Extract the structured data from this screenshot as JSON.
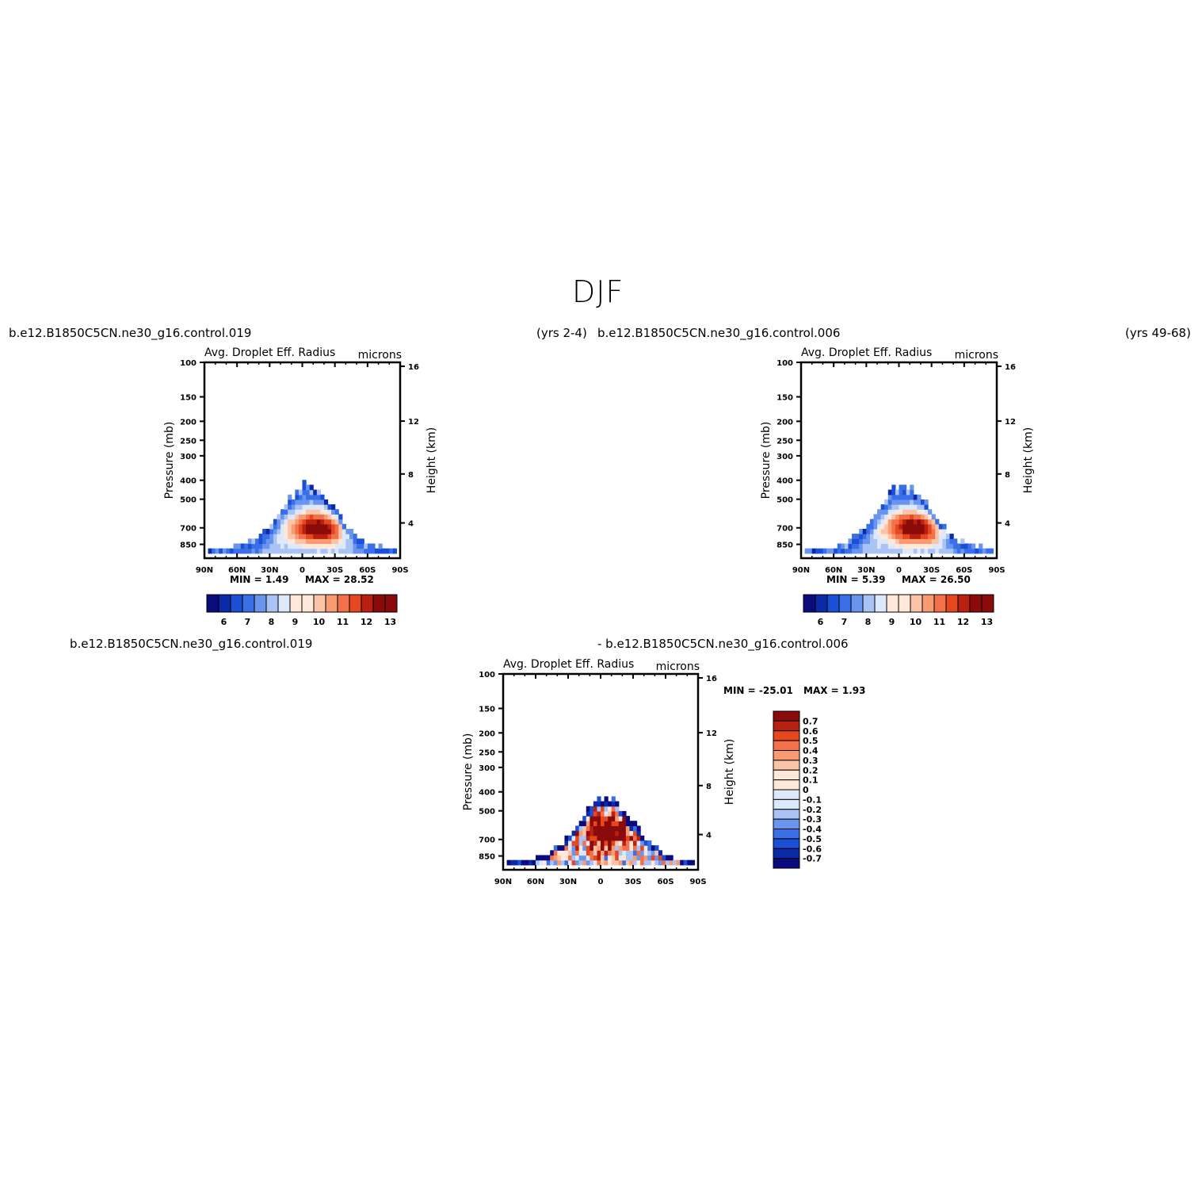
{
  "figure_title": "DJF",
  "panels": [
    {
      "id": "panel-a",
      "case_left": "b.e12.B1850C5CN.ne30_g16.control.019",
      "case_right": "(yrs 2-4)",
      "variable": "Avg. Droplet Eff. Radius",
      "units": "microns",
      "min_text": "MIN =    1.49",
      "max_text": "MAX =   28.52"
    },
    {
      "id": "panel-b",
      "case_left": "b.e12.B1850C5CN.ne30_g16.control.006",
      "case_right": "(yrs 49-68)",
      "variable": "Avg. Droplet Eff. Radius",
      "units": "microns",
      "min_text": "MIN =    5.39",
      "max_text": "MAX =   26.50"
    },
    {
      "id": "panel-diff",
      "case_left": "b.e12.B1850C5CN.ne30_g16.control.019",
      "case_right": "- b.e12.B1850C5CN.ne30_g16.control.006",
      "variable": "Avg. Droplet Eff. Radius",
      "units": "microns",
      "min_text": "MIN = -25.01",
      "max_text": "MAX =    1.93"
    }
  ],
  "chart_data": [
    {
      "type": "heatmap",
      "title": "Avg. Droplet Eff. Radius",
      "ylabel": "Pressure (mb)",
      "y2label": "Height (km)",
      "x_ticks": [
        "90N",
        "60N",
        "30N",
        "0",
        "30S",
        "60S",
        "90S"
      ],
      "y_ticks": [
        "100",
        "150",
        "200",
        "250",
        "300",
        "400",
        "500",
        "700",
        "850"
      ],
      "y2_ticks": [
        "16",
        "12",
        "8",
        "4"
      ],
      "colorbar_ticks": [
        "6",
        "7",
        "8",
        "9",
        "10",
        "11",
        "12",
        "13"
      ],
      "colorbar_orientation": "horizontal",
      "ylim": [
        1000,
        100
      ],
      "y_scale": "log",
      "profile": "control"
    },
    {
      "type": "heatmap",
      "title": "Avg. Droplet Eff. Radius",
      "ylabel": "Pressure (mb)",
      "y2label": "Height (km)",
      "x_ticks": [
        "90N",
        "60N",
        "30N",
        "0",
        "30S",
        "60S",
        "90S"
      ],
      "y_ticks": [
        "100",
        "150",
        "200",
        "250",
        "300",
        "400",
        "500",
        "700",
        "850"
      ],
      "y2_ticks": [
        "16",
        "12",
        "8",
        "4"
      ],
      "colorbar_ticks": [
        "6",
        "7",
        "8",
        "9",
        "10",
        "11",
        "12",
        "13"
      ],
      "colorbar_orientation": "horizontal",
      "ylim": [
        1000,
        100
      ],
      "y_scale": "log",
      "profile": "control"
    },
    {
      "type": "heatmap",
      "title": "Avg. Droplet Eff. Radius",
      "ylabel": "Pressure (mb)",
      "y2label": "Height (km)",
      "x_ticks": [
        "90N",
        "60N",
        "30N",
        "0",
        "30S",
        "60S",
        "90S"
      ],
      "y_ticks": [
        "100",
        "150",
        "200",
        "250",
        "300",
        "400",
        "500",
        "700",
        "850"
      ],
      "y2_ticks": [
        "16",
        "12",
        "8",
        "4"
      ],
      "colorbar_ticks": [
        "0.7",
        "0.6",
        "0.5",
        "0.4",
        "0.3",
        "0.2",
        "0.1",
        "0",
        "-0.1",
        "-0.2",
        "-0.3",
        "-0.4",
        "-0.5",
        "-0.6",
        "-0.7"
      ],
      "colorbar_orientation": "vertical",
      "ylim": [
        1000,
        100
      ],
      "y_scale": "log",
      "profile": "difference"
    }
  ],
  "colors": {
    "palette": [
      "#0b0b80",
      "#0a2aa8",
      "#1a4fd6",
      "#3a6fe8",
      "#6a95ee",
      "#a8c3f4",
      "#dde9fb",
      "#ffe8da",
      "#fcc4a6",
      "#f89b73",
      "#f3704a",
      "#e5481f",
      "#b8200f",
      "#8b0a0a"
    ],
    "axis": "#000000",
    "background": "#ffffff"
  }
}
